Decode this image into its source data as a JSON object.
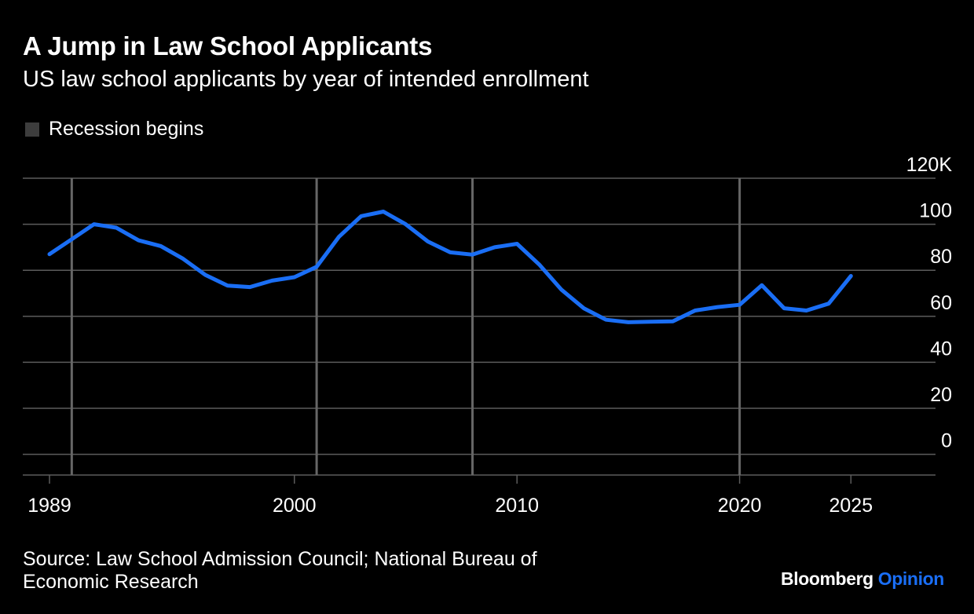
{
  "header": {
    "title": "A Jump in Law School Applicants",
    "subtitle": "US law school applicants by year of intended enrollment"
  },
  "legend": {
    "label": "Recession begins"
  },
  "footer": {
    "source": "Source: Law School Admission Council; National Bureau of Economic Research",
    "brand_main": "Bloomberg",
    "brand_accent": "Opinion"
  },
  "colors": {
    "background": "#000000",
    "line": "#1a6ef5",
    "grid": "#5c5c5c",
    "recession": "#666666",
    "legend_swatch": "#3d3d3d",
    "text": "#ffffff",
    "brand_accent": "#1a6ef5"
  },
  "chart_data": {
    "type": "line",
    "title": "A Jump in Law School Applicants",
    "subtitle": "US law school applicants by year of intended enrollment",
    "xlabel": "",
    "ylabel": "",
    "xlim": [
      1987.8,
      2028.8
    ],
    "ylim": [
      -9,
      120
    ],
    "y_ticks": [
      0,
      20,
      40,
      60,
      80,
      100,
      120
    ],
    "y_tick_labels": [
      "0",
      "20",
      "40",
      "60",
      "80",
      "100",
      "120K"
    ],
    "x_ticks": [
      1989,
      2000,
      2010,
      2020,
      2025
    ],
    "x_tick_labels": [
      "1989",
      "2000",
      "2010",
      "2020",
      "2025"
    ],
    "recessions": [
      1990,
      2001,
      2008,
      2020
    ],
    "series": [
      {
        "name": "Law school applicants",
        "x": [
          1989,
          1990,
          1991,
          1992,
          1993,
          1994,
          1995,
          1996,
          1997,
          1998,
          1999,
          2000,
          2001,
          2002,
          2003,
          2004,
          2005,
          2006,
          2007,
          2008,
          2009,
          2010,
          2011,
          2012,
          2013,
          2014,
          2015,
          2016,
          2017,
          2018,
          2019,
          2020,
          2021,
          2022,
          2023,
          2024,
          2025
        ],
        "values": [
          87,
          93.5,
          100,
          98.5,
          93,
          90.5,
          85,
          78,
          73.3,
          72.7,
          75.5,
          77,
          81.5,
          94.5,
          103.5,
          105.5,
          100,
          92.5,
          87.8,
          86.8,
          90,
          91.5,
          82.5,
          71.5,
          63.5,
          58.5,
          57.4,
          57.6,
          57.8,
          62.5,
          64,
          65,
          73.5,
          63.5,
          62.5,
          65.5,
          77.5
        ]
      }
    ]
  }
}
